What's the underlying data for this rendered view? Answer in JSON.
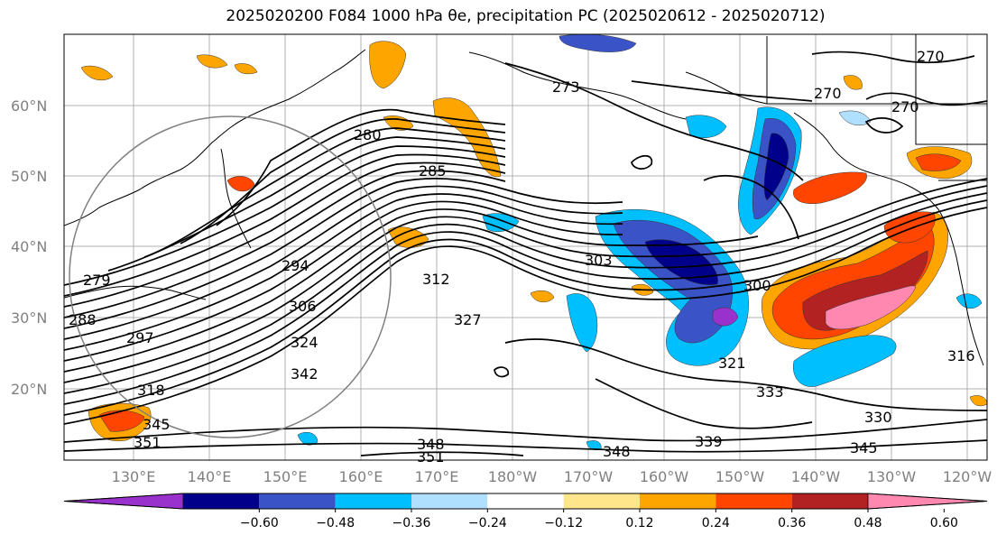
{
  "title": "2025020200 F084 1000 hPa θe, precipitation PC (2025020612 - 2025020712)",
  "map": {
    "lon_labels": [
      "130°E",
      "140°E",
      "150°E",
      "160°E",
      "170°E",
      "180°W",
      "170°W",
      "160°W",
      "150°W",
      "140°W",
      "130°W",
      "120°W"
    ],
    "lat_labels": [
      "60°N",
      "50°N",
      "40°N",
      "30°N",
      "20°N"
    ],
    "contour_labels": [
      "270",
      "270",
      "270",
      "273",
      "280",
      "285",
      "279",
      "294",
      "306",
      "324",
      "342",
      "318",
      "345",
      "351",
      "348",
      "303",
      "312",
      "327",
      "300",
      "321",
      "333",
      "330",
      "339",
      "345",
      "348",
      "351",
      "316",
      "288",
      "297"
    ]
  },
  "colorbar": {
    "tick_labels": [
      "−0.60",
      "−0.48",
      "−0.36",
      "−0.24",
      "−0.12",
      "0.12",
      "0.24",
      "0.36",
      "0.48",
      "0.60"
    ],
    "colors": [
      "#9932cc",
      "#00008b",
      "#3a54c8",
      "#00bfff",
      "#b0e0ff",
      "#ffffff",
      "#ffe68a",
      "#ffa500",
      "#ff4500",
      "#b22222",
      "#ff88b0"
    ]
  }
}
